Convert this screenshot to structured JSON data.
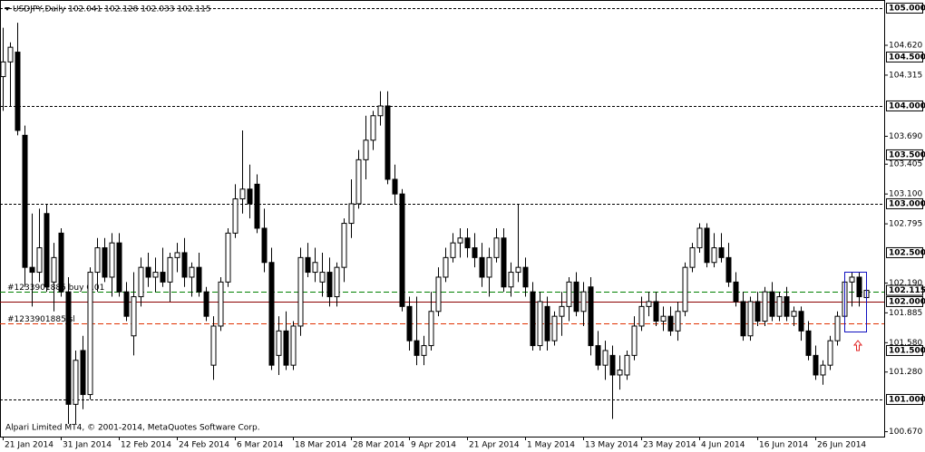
{
  "chart_data": {
    "type": "candlestick",
    "title": "USDJPY,Daily  102.041 102.128 102.033 102.115",
    "footer": "Alpari Limited MT4, © 2001-2014, MetaQuotes Software Corp.",
    "categories": [
      "21 Jan 2014",
      null,
      null,
      null,
      null,
      null,
      null,
      null,
      "31 Jan 2014",
      null,
      null,
      null,
      null,
      null,
      null,
      null,
      "12 Feb 2014",
      null,
      null,
      null,
      null,
      null,
      null,
      null,
      "24 Feb 2014",
      null,
      null,
      null,
      null,
      null,
      null,
      null,
      "6 Mar 2014",
      null,
      null,
      null,
      null,
      null,
      null,
      null,
      "18 Mar 2014",
      null,
      null,
      null,
      null,
      null,
      null,
      null,
      "28 Mar 2014",
      null,
      null,
      null,
      null,
      null,
      null,
      null,
      "9 Apr 2014",
      null,
      null,
      null,
      null,
      null,
      null,
      null,
      "21 Apr 2014",
      null,
      null,
      null,
      null,
      null,
      null,
      null,
      "1 May 2014",
      null,
      null,
      null,
      null,
      null,
      null,
      null,
      "13 May 2014",
      null,
      null,
      null,
      null,
      null,
      null,
      null,
      "23 May 2014",
      null,
      null,
      null,
      null,
      null,
      null,
      null,
      "4 Jun 2014",
      null,
      null,
      null,
      null,
      null,
      null,
      null,
      "16 Jun 2014",
      null,
      null,
      null,
      null,
      null,
      null,
      null,
      "26 Jun 2014",
      null,
      null,
      null,
      null,
      null,
      null,
      null
    ],
    "open": [
      104.3,
      104.45,
      104.55,
      103.7,
      102.35,
      102.3,
      102.9,
      102.2,
      102.7,
      102.1,
      100.95,
      101.5,
      101.05,
      102.3,
      102.55,
      102.25,
      102.6,
      102.1,
      101.65,
      102.05,
      102.35,
      102.25,
      102.3,
      102.2,
      102.45,
      102.5,
      102.25,
      102.35,
      102.1,
      101.35,
      101.75,
      102.2,
      102.7,
      103.05,
      103.15,
      103.2,
      102.75,
      102.4,
      101.45,
      101.7,
      101.35,
      101.75,
      102.45,
      102.3,
      102.2,
      102.3,
      102.05,
      102.35,
      102.8,
      103.0,
      103.45,
      103.65,
      103.9,
      104.0,
      103.25,
      103.1,
      101.95,
      101.6,
      101.45,
      101.55,
      101.9,
      102.25,
      102.45,
      102.6,
      102.65,
      102.55,
      102.45,
      102.25,
      102.45,
      102.65,
      102.15,
      102.3,
      102.35,
      102.1,
      101.55,
      101.95,
      101.6,
      101.85,
      101.95,
      102.2,
      101.9,
      102.15,
      101.55,
      101.35,
      101.45,
      101.25,
      101.25,
      101.45,
      101.75,
      101.95,
      102.0,
      101.8,
      101.85,
      101.7,
      101.9,
      102.35,
      102.55,
      102.75,
      102.4,
      102.55,
      102.45,
      102.2,
      102.0,
      101.65,
      102.0,
      101.8,
      102.1,
      101.85,
      102.05,
      101.85,
      101.9,
      101.7,
      101.45,
      101.25,
      101.35,
      101.6,
      101.85,
      102.2,
      102.25,
      102.041
    ],
    "high": [
      104.8,
      104.65,
      104.85,
      103.8,
      102.9,
      102.95,
      103.0,
      102.6,
      102.75,
      102.25,
      101.5,
      101.65,
      102.35,
      102.65,
      102.65,
      102.7,
      102.7,
      102.2,
      102.3,
      102.45,
      102.5,
      102.45,
      102.55,
      102.5,
      102.6,
      102.65,
      102.4,
      102.5,
      102.15,
      101.85,
      102.25,
      102.75,
      103.2,
      103.75,
      103.4,
      103.3,
      102.95,
      102.55,
      101.85,
      101.9,
      101.8,
      102.55,
      102.6,
      102.55,
      102.5,
      102.45,
      102.4,
      102.85,
      103.25,
      103.55,
      103.9,
      103.95,
      104.15,
      104.15,
      103.4,
      103.15,
      102.05,
      102.05,
      101.65,
      102.1,
      102.35,
      102.55,
      102.7,
      102.75,
      102.75,
      102.7,
      102.6,
      102.55,
      102.75,
      102.75,
      102.4,
      103.0,
      102.45,
      102.2,
      102.1,
      102.05,
      101.9,
      102.1,
      102.25,
      102.3,
      102.2,
      102.25,
      101.7,
      101.6,
      101.55,
      101.45,
      101.5,
      101.85,
      102.05,
      102.1,
      102.1,
      101.95,
      101.95,
      102.0,
      102.4,
      102.6,
      102.8,
      102.8,
      102.7,
      102.7,
      102.6,
      102.3,
      102.1,
      102.05,
      102.1,
      102.15,
      102.2,
      102.1,
      102.15,
      101.95,
      101.95,
      101.8,
      101.55,
      101.4,
      101.65,
      101.9,
      102.25,
      102.3,
      102.3,
      102.128
    ],
    "low": [
      103.95,
      104.0,
      103.7,
      102.15,
      101.95,
      102.2,
      102.1,
      101.9,
      102.05,
      100.75,
      100.75,
      100.9,
      101.0,
      102.1,
      102.2,
      102.05,
      102.05,
      101.8,
      101.45,
      101.95,
      102.15,
      102.1,
      102.15,
      102.0,
      102.3,
      102.15,
      102.05,
      102.05,
      101.8,
      101.2,
      101.7,
      102.15,
      102.65,
      102.9,
      102.85,
      102.7,
      102.3,
      101.3,
      101.25,
      101.3,
      101.3,
      101.65,
      102.25,
      102.2,
      102.05,
      101.95,
      101.95,
      102.2,
      102.65,
      102.95,
      103.25,
      103.55,
      103.8,
      103.2,
      103.0,
      101.9,
      101.5,
      101.35,
      101.35,
      101.5,
      101.85,
      102.2,
      102.4,
      102.45,
      102.45,
      102.35,
      102.15,
      102.05,
      102.4,
      102.1,
      102.05,
      102.2,
      102.05,
      101.5,
      101.5,
      101.5,
      101.55,
      101.65,
      101.8,
      101.85,
      101.75,
      101.45,
      101.3,
      101.2,
      100.8,
      101.1,
      101.2,
      101.4,
      101.7,
      101.85,
      101.75,
      101.7,
      101.65,
      101.6,
      101.85,
      102.3,
      102.5,
      102.35,
      102.35,
      102.4,
      102.15,
      101.95,
      101.6,
      101.6,
      101.75,
      101.75,
      101.8,
      101.8,
      101.8,
      101.75,
      101.6,
      101.4,
      101.2,
      101.15,
      101.3,
      101.55,
      101.8,
      101.95,
      101.95,
      102.033
    ],
    "close": [
      104.45,
      104.6,
      103.75,
      102.35,
      102.3,
      102.55,
      102.15,
      102.45,
      102.1,
      100.95,
      101.4,
      101.05,
      102.3,
      102.55,
      102.25,
      102.6,
      102.1,
      101.85,
      102.05,
      102.35,
      102.25,
      102.3,
      102.2,
      102.45,
      102.5,
      102.25,
      102.35,
      102.1,
      101.85,
      101.75,
      102.2,
      102.7,
      103.05,
      103.15,
      103.0,
      102.75,
      102.4,
      101.35,
      101.7,
      101.35,
      101.75,
      102.45,
      102.3,
      102.4,
      102.3,
      102.05,
      102.35,
      102.8,
      103.0,
      103.45,
      103.65,
      103.9,
      104.0,
      103.25,
      103.1,
      101.95,
      101.6,
      101.45,
      101.55,
      101.9,
      102.25,
      102.45,
      102.6,
      102.65,
      102.55,
      102.45,
      102.25,
      102.45,
      102.65,
      102.15,
      102.3,
      102.35,
      102.15,
      101.55,
      102.0,
      101.6,
      101.85,
      101.95,
      102.2,
      101.9,
      102.1,
      101.55,
      101.35,
      101.5,
      101.25,
      101.3,
      101.45,
      101.75,
      101.95,
      102.0,
      101.8,
      101.85,
      101.7,
      101.9,
      102.35,
      102.55,
      102.75,
      102.4,
      102.55,
      102.45,
      102.2,
      102.0,
      101.65,
      102.0,
      101.8,
      102.1,
      101.85,
      102.05,
      101.85,
      101.9,
      101.7,
      101.45,
      101.25,
      101.35,
      101.6,
      101.85,
      102.2,
      102.25,
      102.05,
      102.115
    ],
    "ylim": [
      100.62,
      105.083
    ],
    "yticks": [
      {
        "value": 104.62,
        "label": "104.620"
      },
      {
        "value": 104.315,
        "label": "104.315"
      },
      {
        "value": 103.69,
        "label": "103.690"
      },
      {
        "value": 103.405,
        "label": "103.405"
      },
      {
        "value": 103.1,
        "label": "103.100"
      },
      {
        "value": 102.795,
        "label": "102.795"
      },
      {
        "value": 102.19,
        "label": "102.190"
      },
      {
        "value": 101.885,
        "label": "101.885"
      },
      {
        "value": 101.58,
        "label": "101.580"
      },
      {
        "value": 101.28,
        "label": "101.280"
      },
      {
        "value": 100.67,
        "label": "100.670"
      }
    ],
    "boxed_yticks": [
      {
        "value": 105,
        "label": "105.000"
      },
      {
        "value": 104.5,
        "label": "104.500"
      },
      {
        "value": 104,
        "label": "104.000"
      },
      {
        "value": 103.5,
        "label": "103.500"
      },
      {
        "value": 103,
        "label": "103.000"
      },
      {
        "value": 102.5,
        "label": "102.500"
      },
      {
        "value": 102.115,
        "label": "102.115"
      },
      {
        "value": 102,
        "label": "102.000"
      },
      {
        "value": 101.5,
        "label": "101.500"
      },
      {
        "value": 101,
        "label": "101.000"
      }
    ],
    "hlines": [
      {
        "value": 105,
        "color": "#000000",
        "dash": true
      },
      {
        "value": 104,
        "color": "#000000",
        "dash": true
      },
      {
        "value": 103,
        "color": "#000000",
        "dash": true
      },
      {
        "value": 102,
        "color": "#8b0000",
        "dash": false
      },
      {
        "value": 101,
        "color": "#000000",
        "dash": true
      }
    ],
    "orders": [
      {
        "value": 102.1,
        "label": "#1233901885 buy 0.01",
        "color": "#008000"
      },
      {
        "value": 101.78,
        "label": "#1233901885 sl",
        "color": "#e03000"
      }
    ]
  }
}
